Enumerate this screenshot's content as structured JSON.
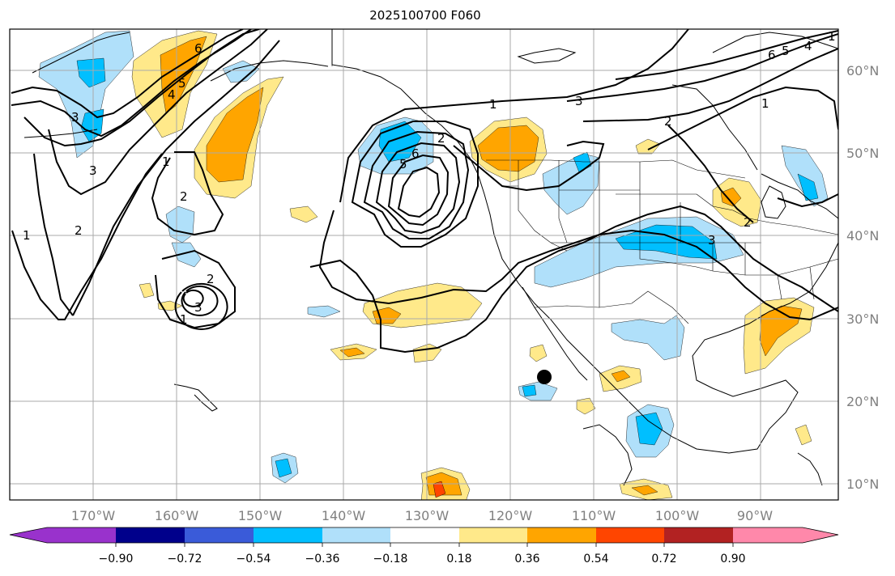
{
  "title": "2025100700 F060",
  "colors": {
    "neg_090": "#9932cc",
    "neg_072": "#00008b",
    "neg_054": "#3a5bd9",
    "neg_036": "#00bfff",
    "neg_018": "#b0e0fa",
    "neutral": "#ffffff",
    "pos_018": "#ffe98a",
    "pos_036": "#ffa500",
    "pos_054": "#ff4500",
    "pos_072": "#b22222",
    "pos_090": "#ff88aa",
    "contour": "#000000",
    "grid": "#aaaaaa",
    "land_outline": "#000000"
  },
  "map": {
    "lat_ticks": [
      "60°N",
      "50°N",
      "40°N",
      "30°N",
      "20°N",
      "10°N"
    ],
    "lon_ticks": [
      "170°W",
      "160°W",
      "150°W",
      "140°W",
      "130°W",
      "120°W",
      "110°W",
      "100°W",
      "90°W"
    ],
    "grid": true,
    "marker": "storm-center-dot"
  },
  "contour_labels": [
    "6",
    "5",
    "4",
    "3",
    "2",
    "1",
    "1",
    "2",
    "3",
    "1",
    "2",
    "3",
    "2",
    "3",
    "1",
    "6",
    "5",
    "1",
    "3",
    "6",
    "5",
    "4",
    "1",
    "2",
    "2"
  ],
  "colorbar": {
    "labels": [
      "−0.90",
      "−0.72",
      "−0.54",
      "−0.36",
      "−0.18",
      "0.18",
      "0.36",
      "0.54",
      "0.72",
      "0.90"
    ],
    "levels": [
      -0.9,
      -0.72,
      -0.54,
      -0.36,
      -0.18,
      0.18,
      0.36,
      0.54,
      0.72,
      0.9
    ],
    "extend": "both"
  }
}
